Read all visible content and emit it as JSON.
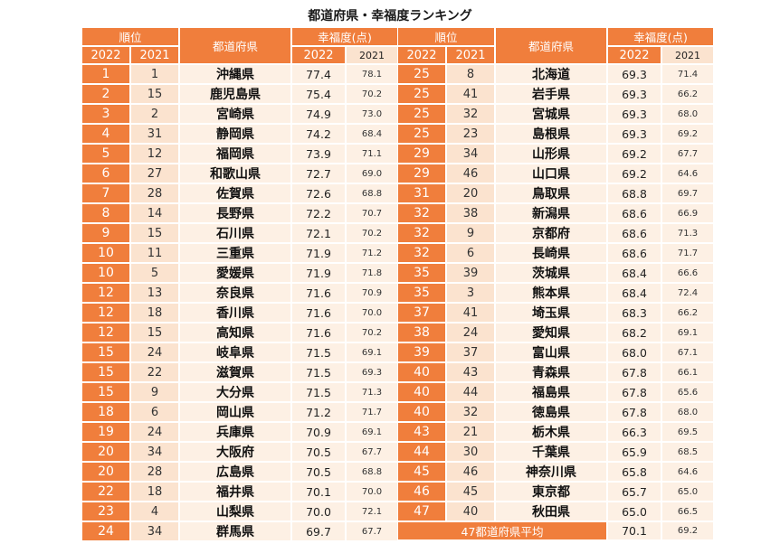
{
  "title": "都道府県・幸福度ランキング",
  "headers": {
    "rank": "順位",
    "prefecture": "都道府県",
    "score": "幸福度(点)",
    "y2022": "2022",
    "y2021": "2021"
  },
  "average": {
    "label": "47都道府県平均",
    "v2022": "70.1",
    "v2021": "69.2"
  },
  "left_rows": [
    [
      "1",
      "1",
      "沖縄県",
      "77.4",
      "78.1"
    ],
    [
      "2",
      "15",
      "鹿児島県",
      "75.4",
      "70.2"
    ],
    [
      "3",
      "2",
      "宮崎県",
      "74.9",
      "73.0"
    ],
    [
      "4",
      "31",
      "静岡県",
      "74.2",
      "68.4"
    ],
    [
      "5",
      "12",
      "福岡県",
      "73.9",
      "71.1"
    ],
    [
      "6",
      "27",
      "和歌山県",
      "72.7",
      "69.0"
    ],
    [
      "7",
      "28",
      "佐賀県",
      "72.6",
      "68.8"
    ],
    [
      "8",
      "14",
      "長野県",
      "72.2",
      "70.7"
    ],
    [
      "9",
      "15",
      "石川県",
      "72.1",
      "70.2"
    ],
    [
      "10",
      "11",
      "三重県",
      "71.9",
      "71.2"
    ],
    [
      "10",
      "5",
      "愛媛県",
      "71.9",
      "71.8"
    ],
    [
      "12",
      "13",
      "奈良県",
      "71.6",
      "70.9"
    ],
    [
      "12",
      "18",
      "香川県",
      "71.6",
      "70.0"
    ],
    [
      "12",
      "15",
      "高知県",
      "71.6",
      "70.2"
    ],
    [
      "15",
      "24",
      "岐阜県",
      "71.5",
      "69.1"
    ],
    [
      "15",
      "22",
      "滋賀県",
      "71.5",
      "69.3"
    ],
    [
      "15",
      "9",
      "大分県",
      "71.5",
      "71.3"
    ],
    [
      "18",
      "6",
      "岡山県",
      "71.2",
      "71.7"
    ],
    [
      "19",
      "24",
      "兵庫県",
      "70.9",
      "69.1"
    ],
    [
      "20",
      "34",
      "大阪府",
      "70.5",
      "67.7"
    ],
    [
      "20",
      "28",
      "広島県",
      "70.5",
      "68.8"
    ],
    [
      "22",
      "18",
      "福井県",
      "70.1",
      "70.0"
    ],
    [
      "23",
      "4",
      "山梨県",
      "70.0",
      "72.1"
    ],
    [
      "24",
      "34",
      "群馬県",
      "69.7",
      "67.7"
    ]
  ],
  "right_rows": [
    [
      "25",
      "8",
      "北海道",
      "69.3",
      "71.4"
    ],
    [
      "25",
      "41",
      "岩手県",
      "69.3",
      "66.2"
    ],
    [
      "25",
      "32",
      "宮城県",
      "69.3",
      "68.0"
    ],
    [
      "25",
      "23",
      "島根県",
      "69.3",
      "69.2"
    ],
    [
      "29",
      "34",
      "山形県",
      "69.2",
      "67.7"
    ],
    [
      "29",
      "46",
      "山口県",
      "69.2",
      "64.6"
    ],
    [
      "31",
      "20",
      "鳥取県",
      "68.8",
      "69.7"
    ],
    [
      "32",
      "38",
      "新潟県",
      "68.6",
      "66.9"
    ],
    [
      "32",
      "9",
      "京都府",
      "68.6",
      "71.3"
    ],
    [
      "32",
      "6",
      "長崎県",
      "68.6",
      "71.7"
    ],
    [
      "35",
      "39",
      "茨城県",
      "68.4",
      "66.6"
    ],
    [
      "35",
      "3",
      "熊本県",
      "68.4",
      "72.4"
    ],
    [
      "37",
      "41",
      "埼玉県",
      "68.3",
      "66.2"
    ],
    [
      "38",
      "24",
      "愛知県",
      "68.2",
      "69.1"
    ],
    [
      "39",
      "37",
      "富山県",
      "68.0",
      "67.1"
    ],
    [
      "40",
      "43",
      "青森県",
      "67.8",
      "66.1"
    ],
    [
      "40",
      "44",
      "福島県",
      "67.8",
      "65.6"
    ],
    [
      "40",
      "32",
      "徳島県",
      "67.8",
      "68.0"
    ],
    [
      "43",
      "21",
      "栃木県",
      "66.3",
      "69.5"
    ],
    [
      "44",
      "30",
      "千葉県",
      "65.9",
      "68.5"
    ],
    [
      "45",
      "46",
      "神奈川県",
      "65.8",
      "64.6"
    ],
    [
      "46",
      "45",
      "東京都",
      "65.7",
      "65.0"
    ],
    [
      "47",
      "40",
      "秋田県",
      "65.0",
      "66.5"
    ]
  ]
}
